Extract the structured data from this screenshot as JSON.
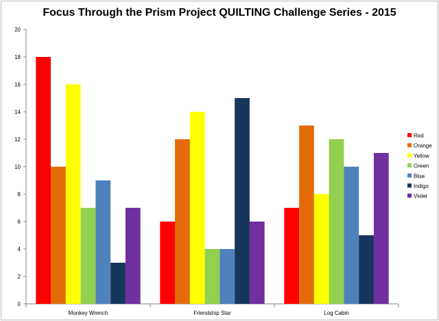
{
  "chart_data": {
    "type": "bar",
    "title": "Focus Through the Prism Project QUILTING Challenge Series - 2015",
    "xlabel": "",
    "ylabel": "",
    "ylim": [
      0,
      20
    ],
    "ytick_step": 2,
    "grid": false,
    "legend_position": "right",
    "categories": [
      "Monkey Wrench",
      "Friendship Star",
      "Log Cabin"
    ],
    "series": [
      {
        "name": "Red",
        "color": "#ff0000",
        "values": [
          18,
          6,
          7
        ]
      },
      {
        "name": "Orange",
        "color": "#e36c09",
        "values": [
          10,
          12,
          13
        ]
      },
      {
        "name": "Yellow",
        "color": "#ffff00",
        "values": [
          16,
          14,
          8
        ]
      },
      {
        "name": "Green",
        "color": "#92d050",
        "values": [
          7,
          4,
          12
        ]
      },
      {
        "name": "Blue",
        "color": "#4f81bd",
        "values": [
          9,
          4,
          10
        ]
      },
      {
        "name": "Indigo",
        "color": "#17365d",
        "values": [
          3,
          15,
          5
        ]
      },
      {
        "name": "Violet",
        "color": "#7030a0",
        "values": [
          7,
          6,
          11
        ]
      }
    ]
  }
}
